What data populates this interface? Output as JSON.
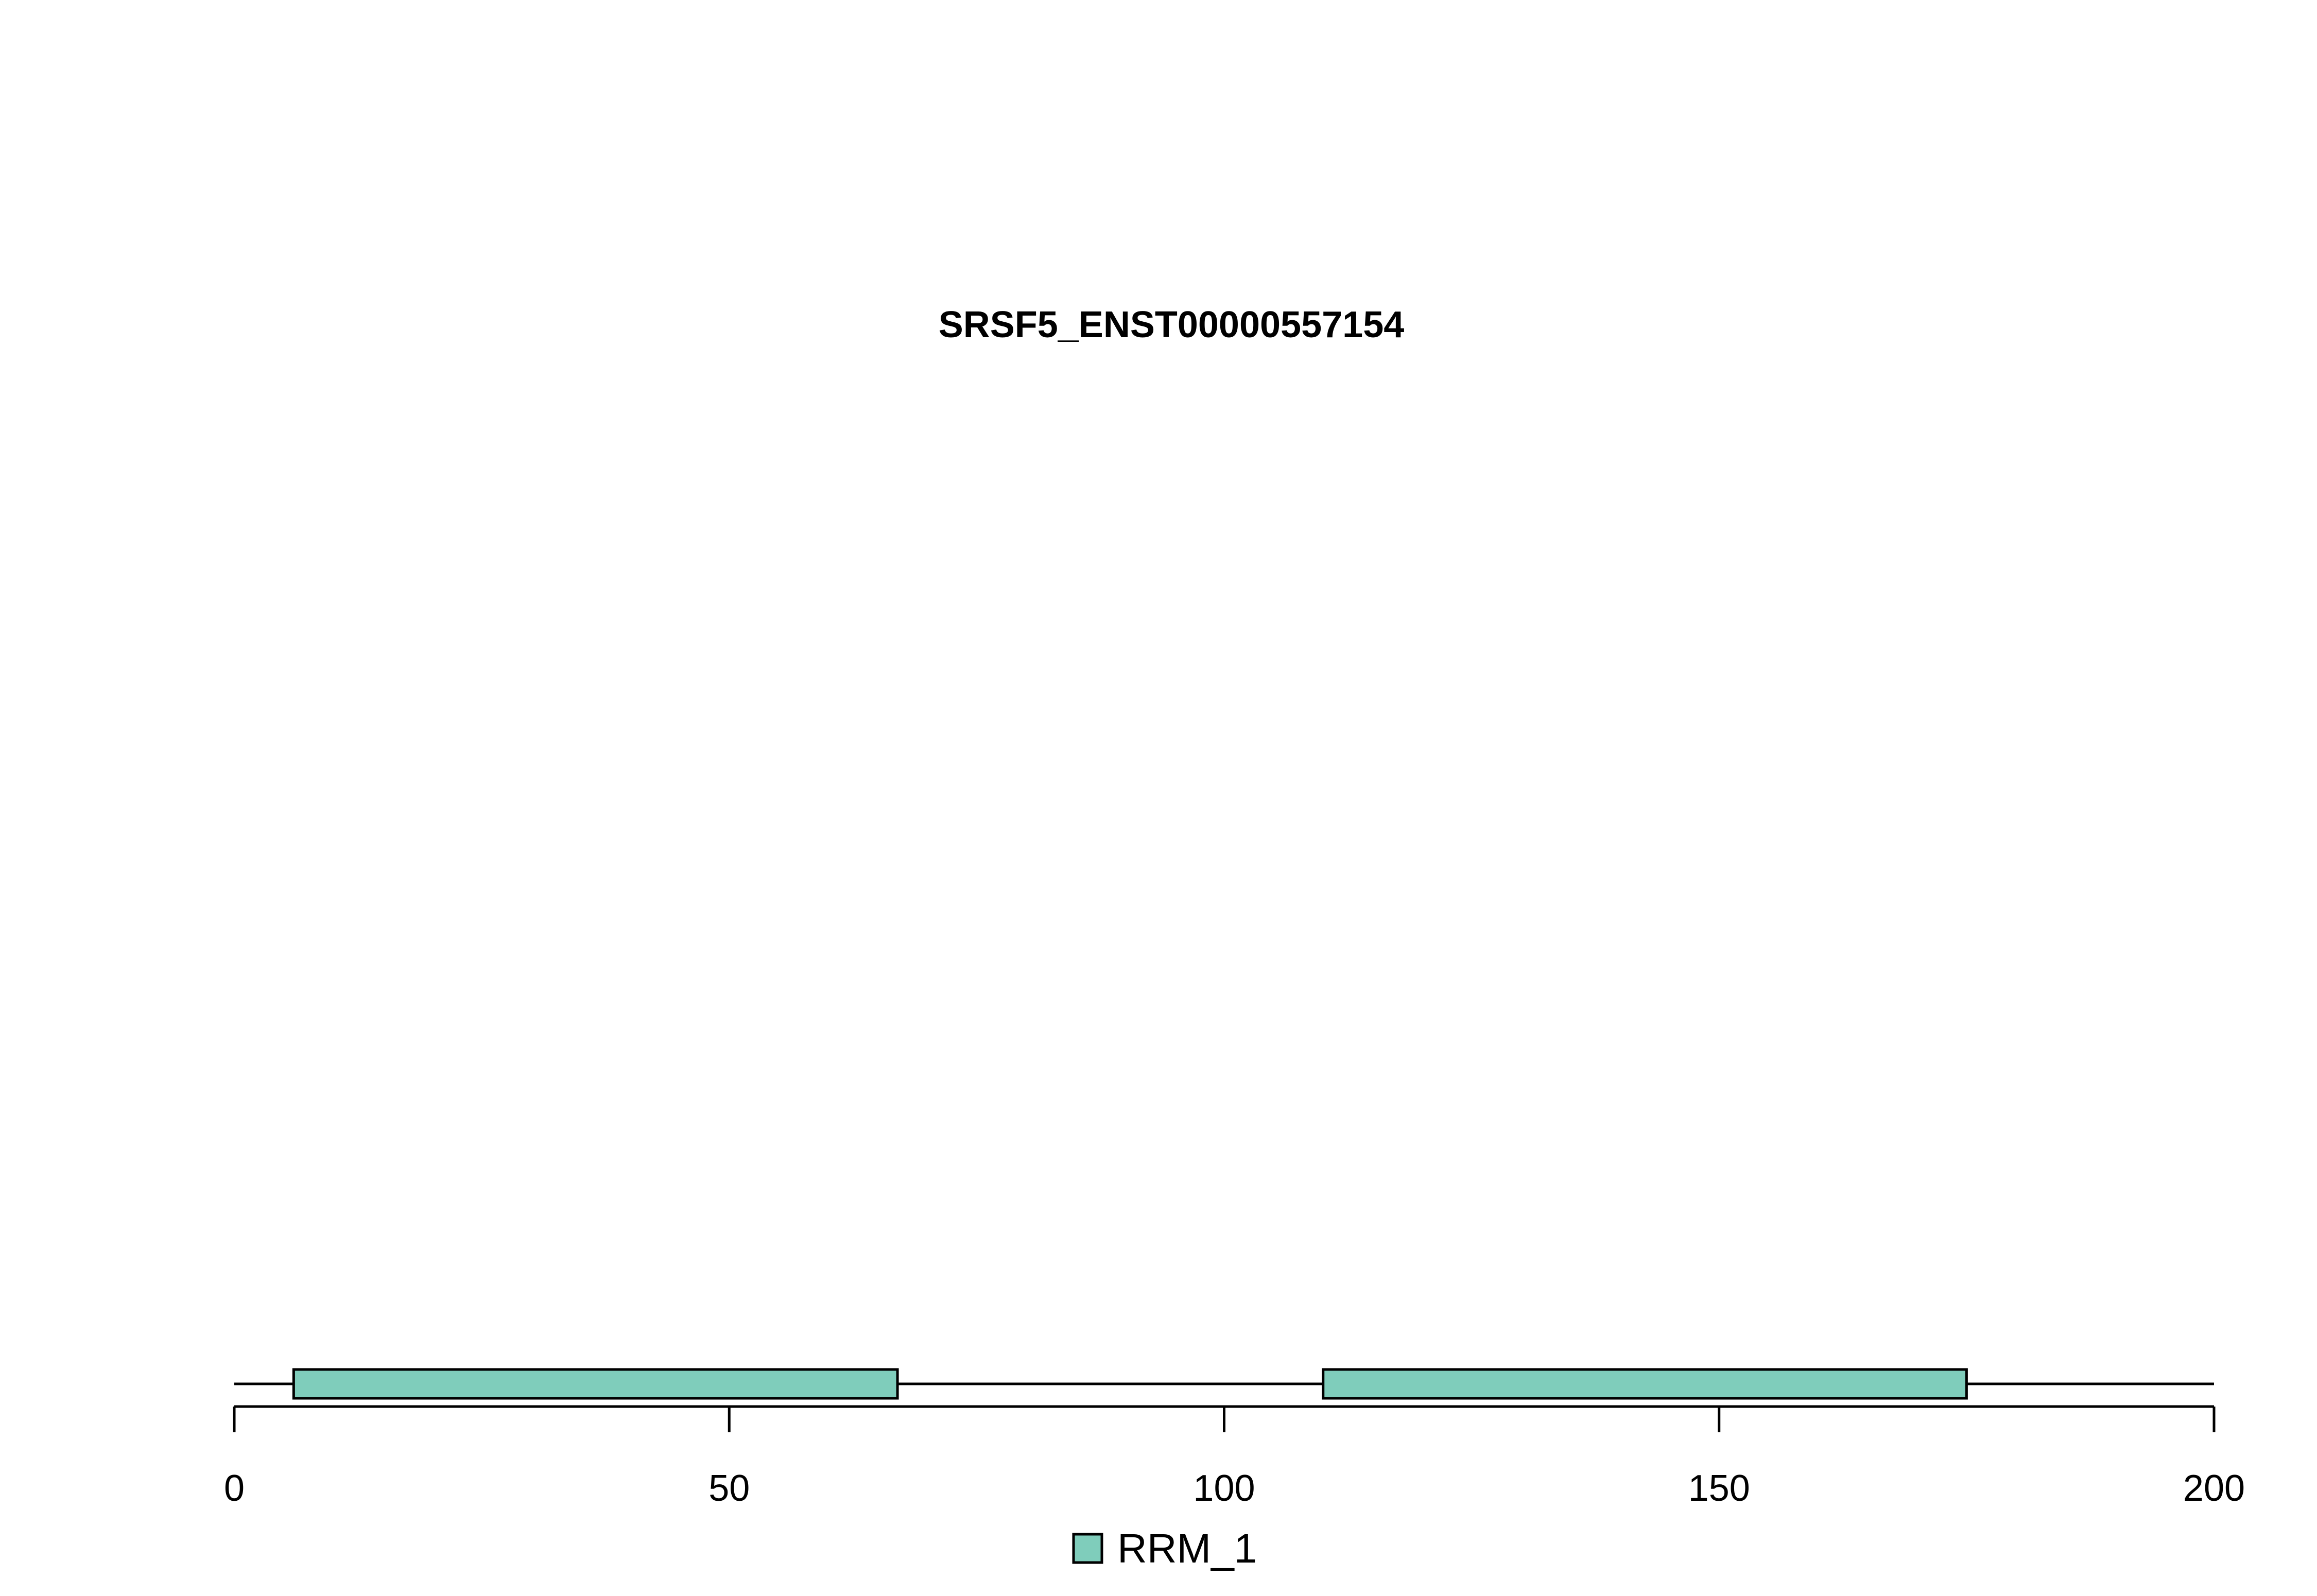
{
  "chart_data": {
    "type": "domain-track",
    "title": "SRSF5_ENST00000557154",
    "xlim": [
      0,
      200
    ],
    "x_ticks": [
      0,
      50,
      100,
      150,
      200
    ],
    "x_tick_labels": [
      "0",
      "50",
      "100",
      "150",
      "200"
    ],
    "protein_length": 200,
    "domains": [
      {
        "name": "RRM_1",
        "start": 6,
        "end": 67
      },
      {
        "name": "RRM_1",
        "start": 110,
        "end": 175
      }
    ],
    "legend": [
      {
        "label": "RRM_1",
        "color": "#7fcdbb"
      }
    ],
    "legend_position": "bottom-center",
    "colors": {
      "domain_fill": "#7fcdbb",
      "line": "#000000"
    }
  }
}
